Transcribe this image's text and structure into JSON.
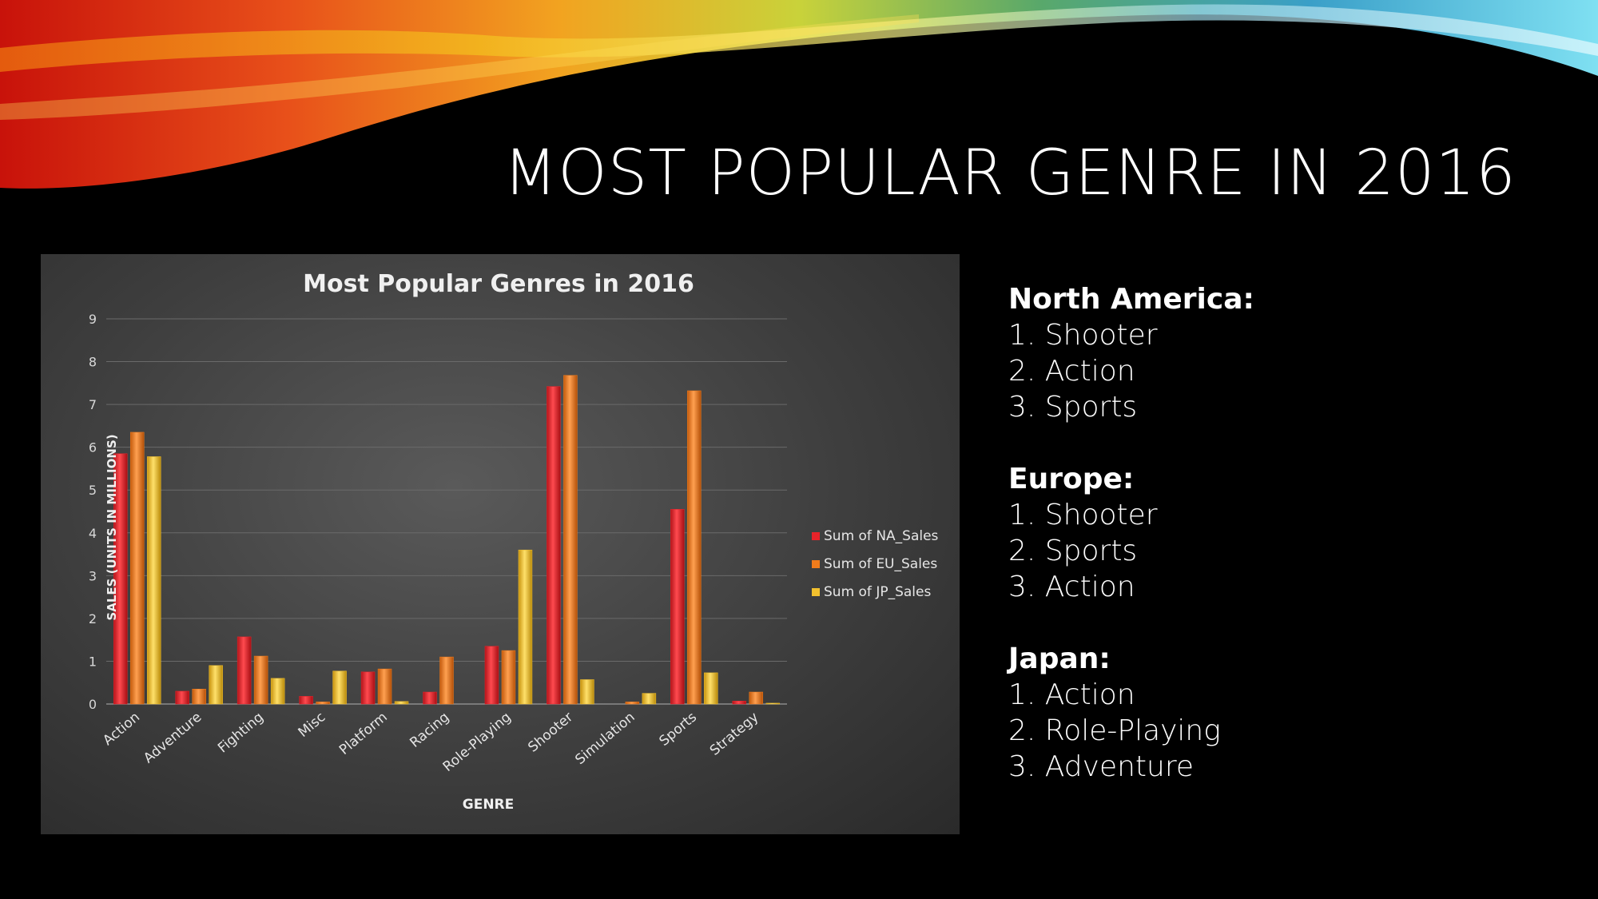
{
  "slide": {
    "title": "MOST POPULAR GENRE IN 2016"
  },
  "regions": [
    {
      "name": "North America:",
      "items": [
        "1. Shooter",
        "2. Action",
        "3. Sports"
      ]
    },
    {
      "name": "Europe:",
      "items": [
        "1. Shooter",
        "2. Sports",
        "3. Action"
      ]
    },
    {
      "name": "Japan:",
      "items": [
        "1. Action",
        "2. Role-Playing",
        "3. Adventure"
      ]
    }
  ],
  "chart_data": {
    "type": "bar",
    "title": "Most Popular Genres in 2016",
    "xlabel": "GENRE",
    "ylabel": "SALES (UNITS IN MILLIONS)",
    "ylim": [
      0,
      9
    ],
    "yticks": [
      0,
      1,
      2,
      3,
      4,
      5,
      6,
      7,
      8,
      9
    ],
    "grid": true,
    "legend_position": "right",
    "categories": [
      "Action",
      "Adventure",
      "Fighting",
      "Misc",
      "Platform",
      "Racing",
      "Role-Playing",
      "Shooter",
      "Simulation",
      "Sports",
      "Strategy"
    ],
    "series": [
      {
        "name": "Sum of NA_Sales",
        "color": "#e8232a",
        "values": [
          5.85,
          0.3,
          1.57,
          0.18,
          0.75,
          0.28,
          1.35,
          7.42,
          0.0,
          4.55,
          0.07
        ]
      },
      {
        "name": "Sum of EU_Sales",
        "color": "#f07c1c",
        "values": [
          6.35,
          0.35,
          1.12,
          0.05,
          0.82,
          1.1,
          1.25,
          7.68,
          0.05,
          7.32,
          0.28
        ]
      },
      {
        "name": "Sum of JP_Sales",
        "color": "#f2c12e",
        "values": [
          5.78,
          0.9,
          0.6,
          0.77,
          0.06,
          0.0,
          3.6,
          0.57,
          0.25,
          0.73,
          0.02
        ]
      }
    ]
  }
}
